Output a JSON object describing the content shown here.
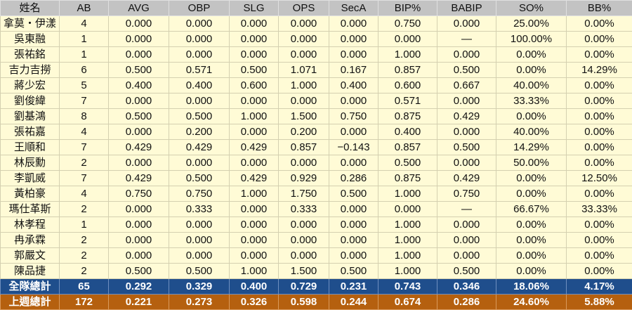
{
  "table": {
    "header": [
      "姓名",
      "AB",
      "AVG",
      "OBP",
      "SLG",
      "OPS",
      "SecA",
      "BIP%",
      "BABIP",
      "SO%",
      "BB%"
    ],
    "rows": [
      [
        "拿莫・伊漾",
        "4",
        "0.000",
        "0.000",
        "0.000",
        "0.000",
        "0.000",
        "0.750",
        "0.000",
        "25.00%",
        "0.00%"
      ],
      [
        "吳東融",
        "1",
        "0.000",
        "0.000",
        "0.000",
        "0.000",
        "0.000",
        "0.000",
        "—",
        "100.00%",
        "0.00%"
      ],
      [
        "張祐銘",
        "1",
        "0.000",
        "0.000",
        "0.000",
        "0.000",
        "0.000",
        "1.000",
        "0.000",
        "0.00%",
        "0.00%"
      ],
      [
        "吉力吉撈",
        "6",
        "0.500",
        "0.571",
        "0.500",
        "1.071",
        "0.167",
        "0.857",
        "0.500",
        "0.00%",
        "14.29%"
      ],
      [
        "蔣少宏",
        "5",
        "0.400",
        "0.400",
        "0.600",
        "1.000",
        "0.400",
        "0.600",
        "0.667",
        "40.00%",
        "0.00%"
      ],
      [
        "劉俊緯",
        "7",
        "0.000",
        "0.000",
        "0.000",
        "0.000",
        "0.000",
        "0.571",
        "0.000",
        "33.33%",
        "0.00%"
      ],
      [
        "劉基鴻",
        "8",
        "0.500",
        "0.500",
        "1.000",
        "1.500",
        "0.750",
        "0.875",
        "0.429",
        "0.00%",
        "0.00%"
      ],
      [
        "張祐嘉",
        "4",
        "0.000",
        "0.200",
        "0.000",
        "0.200",
        "0.000",
        "0.400",
        "0.000",
        "40.00%",
        "0.00%"
      ],
      [
        "王順和",
        "7",
        "0.429",
        "0.429",
        "0.429",
        "0.857",
        "−0.143",
        "0.857",
        "0.500",
        "14.29%",
        "0.00%"
      ],
      [
        "林辰勳",
        "2",
        "0.000",
        "0.000",
        "0.000",
        "0.000",
        "0.000",
        "0.500",
        "0.000",
        "50.00%",
        "0.00%"
      ],
      [
        "李凱威",
        "7",
        "0.429",
        "0.500",
        "0.429",
        "0.929",
        "0.286",
        "0.875",
        "0.429",
        "0.00%",
        "12.50%"
      ],
      [
        "黃柏豪",
        "4",
        "0.750",
        "0.750",
        "1.000",
        "1.750",
        "0.500",
        "1.000",
        "0.750",
        "0.00%",
        "0.00%"
      ],
      [
        "瑪仕革斯",
        "2",
        "0.000",
        "0.333",
        "0.000",
        "0.333",
        "0.000",
        "0.000",
        "—",
        "66.67%",
        "33.33%"
      ],
      [
        "林孝程",
        "1",
        "0.000",
        "0.000",
        "0.000",
        "0.000",
        "0.000",
        "1.000",
        "0.000",
        "0.00%",
        "0.00%"
      ],
      [
        "冉承霖",
        "2",
        "0.000",
        "0.000",
        "0.000",
        "0.000",
        "0.000",
        "1.000",
        "0.000",
        "0.00%",
        "0.00%"
      ],
      [
        "郭嚴文",
        "2",
        "0.000",
        "0.000",
        "0.000",
        "0.000",
        "0.000",
        "1.000",
        "0.000",
        "0.00%",
        "0.00%"
      ],
      [
        "陳品捷",
        "2",
        "0.500",
        "0.500",
        "1.000",
        "1.500",
        "0.500",
        "1.000",
        "0.500",
        "0.00%",
        "0.00%"
      ]
    ],
    "totals": [
      [
        "全隊總計",
        "65",
        "0.292",
        "0.329",
        "0.400",
        "0.729",
        "0.231",
        "0.743",
        "0.346",
        "18.06%",
        "4.17%"
      ],
      [
        "上週總計",
        "172",
        "0.221",
        "0.273",
        "0.326",
        "0.598",
        "0.244",
        "0.674",
        "0.286",
        "24.60%",
        "5.88%"
      ]
    ]
  }
}
